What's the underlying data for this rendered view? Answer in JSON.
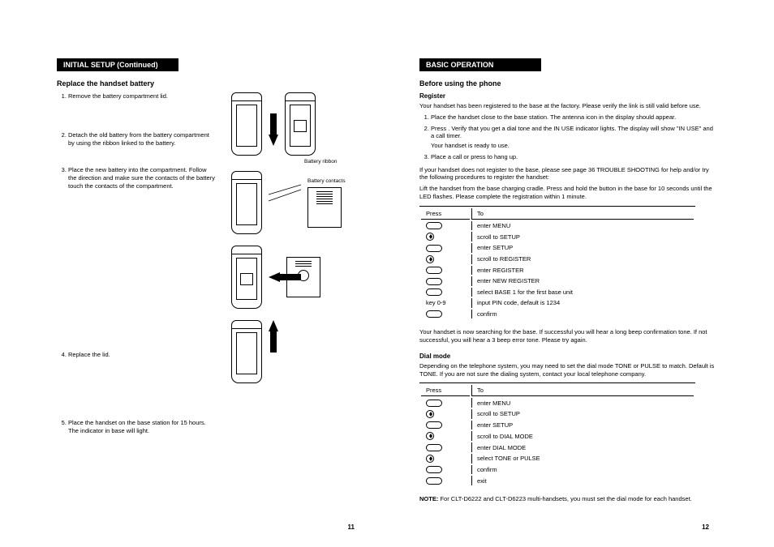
{
  "left": {
    "sectionTitle": "INITIAL SETUP (Continued)",
    "subheading": "Replace the handset battery",
    "steps": [
      "Remove the battery compartment lid.",
      "Detach the old battery from the battery compartment by using the ribbon linked to the battery.",
      "Place the new battery into the compartment. Follow the direction and make sure the contacts of the battery touch the contacts of the compartment.",
      "Replace the lid.",
      "Place the handset on the base station for 15 hours. The       indicator in base will light."
    ],
    "labels": {
      "batteryRibbon": "Battery ribbon",
      "batteryContacts": "Battery contacts"
    },
    "pageNumber": "11"
  },
  "right": {
    "sectionTitle": "BASIC OPERATION",
    "subheading": "Before using the phone",
    "register": {
      "title": "Register",
      "intro": "Your handset has been registered to the base at the factory. Please verify the link is still valid before use.",
      "steps": [
        "Place the handset close to the base station. The antenna icon in the display should appear.",
        "Press        . Verify that you get a dial tone and the  IN USE  indicator lights. The display will show \"IN USE\" and a call timer.",
        "Place a call or press         to hang up."
      ],
      "readyLine": "Your handset is ready to use.",
      "fallback": "If your handset does not register to the base, please see page 36 TROUBLE SHOOTING for help and/or try the following procedures to register the handset:",
      "lift": "Lift the handset from the base charging cradle. Press and hold the      button in the base for 10 seconds until the         LED flashes. Please complete the registration within 1 minute.",
      "tableHeader": {
        "col1": "Press",
        "col2": "To"
      },
      "tableRows": [
        [
          "menu",
          "enter MENU"
        ],
        [
          "updown",
          "scroll to SETUP"
        ],
        [
          "menu",
          "enter SETUP"
        ],
        [
          "updown",
          "scroll to REGISTER"
        ],
        [
          "menu",
          "enter REGISTER"
        ],
        [
          "menu",
          "enter NEW REGISTER"
        ],
        [
          "menu",
          "select BASE 1 for the first base unit"
        ],
        [
          "text",
          "input PIN code, default is 1234"
        ],
        [
          "menu",
          "confirm"
        ]
      ],
      "key09": "key 0-9",
      "outro": "Your handset is now searching for the base. If successful you will hear a long beep confirmation tone. If not successful, you will hear a 3 beep error tone. Please try again."
    },
    "dialMode": {
      "title": "Dial mode",
      "intro": "Depending on the telephone system, you may need to set the dial mode TONE or PULSE to match. Default is TONE. If you are not sure the dialing system, contact your local telephone company.",
      "tableHeader": {
        "col1": "Press",
        "col2": "To"
      },
      "tableRows": [
        [
          "menu",
          "enter MENU"
        ],
        [
          "updown",
          "scroll to SETUP"
        ],
        [
          "menu",
          "enter SETUP"
        ],
        [
          "updown",
          "scroll to DIAL MODE"
        ],
        [
          "menu",
          "enter DIAL MODE"
        ],
        [
          "updown",
          "select TONE or PULSE"
        ],
        [
          "menu",
          "confirm"
        ],
        [
          "menu",
          "exit"
        ]
      ]
    },
    "note": "For CLT-D6222 and CLT-D6223  multi-handsets, you must set the dial mode for each handset.",
    "noteLabel": "NOTE:",
    "pageNumber": "12"
  }
}
